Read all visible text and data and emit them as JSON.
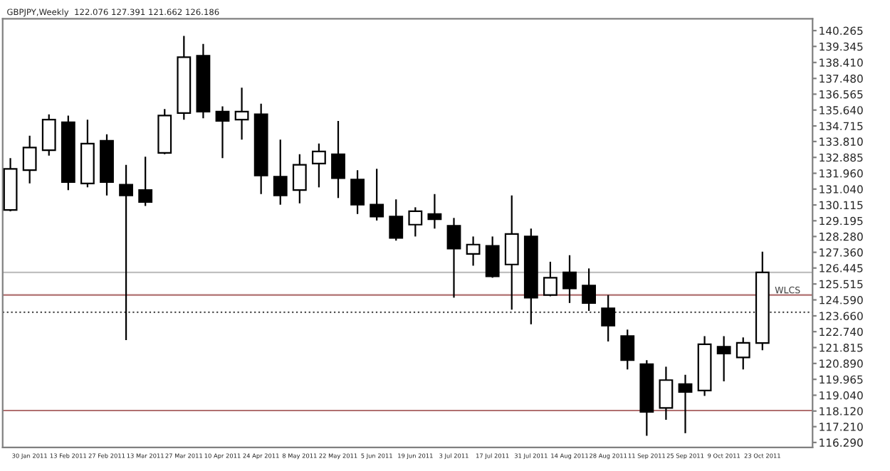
{
  "chart_data": {
    "type": "candlestick",
    "title": "GBPJPY,Weekly  122.076 127.391 121.662 126.186",
    "categories": [
      null,
      "30 Jan 2011",
      null,
      "13 Feb 2011",
      null,
      "27 Feb 2011",
      null,
      "13 Mar 2011",
      null,
      "27 Mar 2011",
      null,
      "10 Apr 2011",
      null,
      "24 Apr 2011",
      null,
      "8 May 2011",
      null,
      "22 May 2011",
      null,
      "5 Jun 2011",
      null,
      "19 Jun 2011",
      null,
      "3 Jul 2011",
      null,
      "17 Jul 2011",
      null,
      "31 Jul 2011",
      null,
      "14 Aug 2011",
      null,
      "28 Aug 2011",
      null,
      "11 Sep 2011",
      null,
      "25 Sep 2011",
      null,
      "9 Oct 2011",
      null,
      "23 Oct 2011"
    ],
    "ohlc": [
      [
        129.82,
        132.84,
        129.75,
        132.22
      ],
      [
        132.14,
        134.15,
        131.37,
        133.46
      ],
      [
        133.3,
        135.39,
        132.99,
        135.08
      ],
      [
        134.93,
        135.32,
        130.98,
        131.45
      ],
      [
        131.37,
        135.08,
        131.14,
        133.69
      ],
      [
        133.85,
        134.23,
        130.67,
        131.45
      ],
      [
        131.29,
        132.45,
        122.25,
        130.67
      ],
      [
        130.98,
        132.92,
        130.06,
        130.29
      ],
      [
        133.15,
        135.7,
        133.07,
        135.32
      ],
      [
        135.47,
        139.96,
        135.08,
        138.72
      ],
      [
        138.8,
        139.49,
        135.16,
        135.55
      ],
      [
        135.55,
        135.86,
        132.84,
        135.01
      ],
      [
        135.08,
        136.94,
        133.92,
        135.55
      ],
      [
        135.39,
        136.01,
        130.75,
        131.83
      ],
      [
        131.76,
        133.92,
        130.13,
        130.67
      ],
      [
        130.98,
        133.07,
        130.21,
        132.45
      ],
      [
        132.53,
        133.69,
        131.14,
        133.23
      ],
      [
        133.07,
        135.01,
        130.52,
        131.68
      ],
      [
        131.6,
        132.14,
        129.59,
        130.13
      ],
      [
        130.13,
        132.22,
        129.21,
        129.44
      ],
      [
        129.44,
        130.44,
        128.04,
        128.2
      ],
      [
        128.97,
        129.98,
        128.28,
        129.75
      ],
      [
        129.59,
        130.75,
        128.74,
        129.28
      ],
      [
        128.9,
        129.36,
        124.72,
        127.58
      ],
      [
        127.27,
        128.28,
        126.58,
        127.81
      ],
      [
        127.73,
        128.28,
        125.88,
        125.96
      ],
      [
        126.65,
        130.67,
        124.02,
        128.43
      ],
      [
        128.28,
        128.74,
        123.17,
        124.72
      ],
      [
        124.87,
        126.81,
        124.8,
        125.88
      ],
      [
        126.19,
        127.19,
        124.41,
        125.26
      ],
      [
        125.42,
        126.42,
        123.95,
        124.41
      ],
      [
        124.1,
        124.87,
        122.17,
        123.09
      ],
      [
        122.48,
        122.86,
        120.54,
        121.08
      ],
      [
        120.85,
        121.08,
        116.68,
        118.07
      ],
      [
        118.3,
        120.7,
        117.61,
        119.92
      ],
      [
        119.69,
        120.23,
        116.83,
        119.23
      ],
      [
        119.31,
        122.48,
        119.0,
        122.01
      ],
      [
        121.86,
        122.48,
        119.85,
        121.47
      ],
      [
        121.24,
        122.4,
        120.54,
        122.09
      ],
      [
        122.076,
        127.391,
        121.662,
        126.186
      ]
    ],
    "ylim": [
      116.0,
      140.95
    ],
    "yticks": [
      {
        "value": 140.265,
        "label": "140.265"
      },
      {
        "value": 139.345,
        "label": "139.345"
      },
      {
        "value": 138.41,
        "label": "138.410"
      },
      {
        "value": 137.48,
        "label": "137.480"
      },
      {
        "value": 136.565,
        "label": "136.565"
      },
      {
        "value": 135.64,
        "label": "135.640"
      },
      {
        "value": 134.715,
        "label": "134.715"
      },
      {
        "value": 133.81,
        "label": "133.810"
      },
      {
        "value": 132.885,
        "label": "132.885"
      },
      {
        "value": 131.96,
        "label": "131.960"
      },
      {
        "value": 131.04,
        "label": "131.040"
      },
      {
        "value": 130.115,
        "label": "130.115"
      },
      {
        "value": 129.195,
        "label": "129.195"
      },
      {
        "value": 128.28,
        "label": "128.280"
      },
      {
        "value": 127.36,
        "label": "127.360"
      },
      {
        "value": 126.445,
        "label": "126.445"
      },
      {
        "value": 125.515,
        "label": "125.515"
      },
      {
        "value": 124.59,
        "label": "124.590"
      },
      {
        "value": 123.66,
        "label": "123.660"
      },
      {
        "value": 122.74,
        "label": "122.740"
      },
      {
        "value": 121.815,
        "label": "121.815"
      },
      {
        "value": 120.89,
        "label": "120.890"
      },
      {
        "value": 119.965,
        "label": "119.965"
      },
      {
        "value": 119.04,
        "label": "119.040"
      },
      {
        "value": 118.12,
        "label": "118.120"
      },
      {
        "value": 117.21,
        "label": "117.210"
      },
      {
        "value": 116.29,
        "label": "116.290"
      }
    ],
    "ref_lines": [
      {
        "axis": "y",
        "value": 126.186,
        "color": "#c0c0c0",
        "line_style": "solid"
      },
      {
        "axis": "y",
        "value": 124.87,
        "label": "WLCS",
        "color": "#b07070",
        "line_style": "solid"
      },
      {
        "axis": "y",
        "value": 123.87,
        "color": "#505050",
        "line_style": "dotted"
      },
      {
        "axis": "y",
        "value": 118.15,
        "color": "#b07070",
        "line_style": "solid"
      }
    ],
    "grid": false
  }
}
